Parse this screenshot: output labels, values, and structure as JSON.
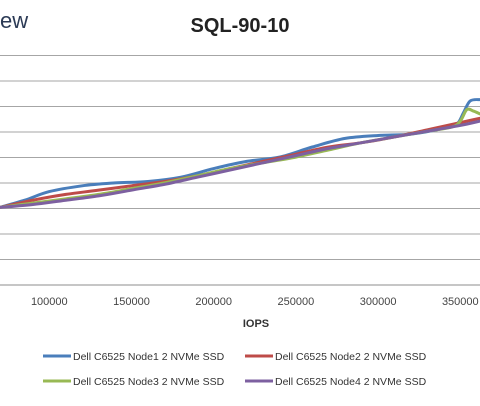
{
  "logo_text": "ew",
  "chart_data": {
    "type": "line",
    "title": "SQL-90-10",
    "xlabel": "IOPS",
    "ylabel": "",
    "xlim": [
      70000,
      362000
    ],
    "ylim": [
      0,
      8
    ],
    "x_ticks": [
      100000,
      150000,
      200000,
      250000,
      300000,
      350000
    ],
    "x_tick_labels": [
      "100000",
      "150000",
      "200000",
      "250000",
      "300000",
      "350000"
    ],
    "grid": true,
    "legend_position": "bottom",
    "series": [
      {
        "name": "Dell C6525 Node1 2 NVMe SSD",
        "color": "#4a7ebb",
        "points": [
          [
            70000,
            2.7
          ],
          [
            85000,
            2.95
          ],
          [
            100000,
            3.25
          ],
          [
            120000,
            3.45
          ],
          [
            140000,
            3.55
          ],
          [
            160000,
            3.6
          ],
          [
            180000,
            3.75
          ],
          [
            200000,
            4.05
          ],
          [
            220000,
            4.3
          ],
          [
            240000,
            4.45
          ],
          [
            260000,
            4.8
          ],
          [
            280000,
            5.1
          ],
          [
            300000,
            5.2
          ],
          [
            320000,
            5.25
          ],
          [
            340000,
            5.45
          ],
          [
            348000,
            5.6
          ],
          [
            352000,
            6.0
          ],
          [
            356000,
            6.4
          ],
          [
            362000,
            6.45
          ]
        ]
      },
      {
        "name": "Dell C6525 Node2 2 NVMe SSD",
        "color": "#be4b48",
        "points": [
          [
            70000,
            2.7
          ],
          [
            90000,
            2.95
          ],
          [
            110000,
            3.15
          ],
          [
            130000,
            3.3
          ],
          [
            150000,
            3.45
          ],
          [
            170000,
            3.6
          ],
          [
            190000,
            3.8
          ],
          [
            210000,
            4.05
          ],
          [
            230000,
            4.3
          ],
          [
            250000,
            4.55
          ],
          [
            270000,
            4.8
          ],
          [
            290000,
            4.95
          ],
          [
            310000,
            5.15
          ],
          [
            330000,
            5.4
          ],
          [
            350000,
            5.65
          ],
          [
            362000,
            5.8
          ]
        ]
      },
      {
        "name": "Dell C6525 Node3 2 NVMe SSD",
        "color": "#98b954",
        "points": [
          [
            70000,
            2.7
          ],
          [
            90000,
            2.85
          ],
          [
            110000,
            3.0
          ],
          [
            130000,
            3.15
          ],
          [
            150000,
            3.35
          ],
          [
            170000,
            3.55
          ],
          [
            190000,
            3.8
          ],
          [
            210000,
            4.05
          ],
          [
            230000,
            4.25
          ],
          [
            250000,
            4.45
          ],
          [
            270000,
            4.7
          ],
          [
            290000,
            4.95
          ],
          [
            310000,
            5.15
          ],
          [
            330000,
            5.35
          ],
          [
            345000,
            5.5
          ],
          [
            350000,
            5.7
          ],
          [
            354000,
            6.1
          ],
          [
            358000,
            6.05
          ],
          [
            362000,
            5.95
          ]
        ]
      },
      {
        "name": "Dell C6525 Node4 2 NVMe SSD",
        "color": "#7d60a0",
        "points": [
          [
            70000,
            2.7
          ],
          [
            90000,
            2.8
          ],
          [
            110000,
            2.95
          ],
          [
            130000,
            3.1
          ],
          [
            150000,
            3.3
          ],
          [
            170000,
            3.5
          ],
          [
            190000,
            3.75
          ],
          [
            210000,
            4.0
          ],
          [
            230000,
            4.25
          ],
          [
            250000,
            4.5
          ],
          [
            270000,
            4.75
          ],
          [
            290000,
            4.95
          ],
          [
            310000,
            5.15
          ],
          [
            330000,
            5.35
          ],
          [
            350000,
            5.55
          ],
          [
            362000,
            5.7
          ]
        ]
      }
    ]
  }
}
